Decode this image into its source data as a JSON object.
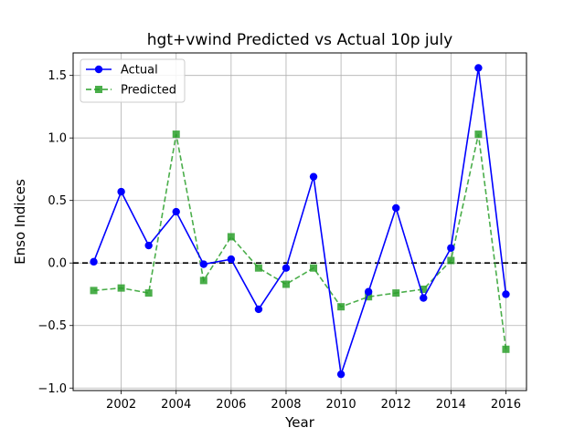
{
  "chart_data": {
    "type": "line",
    "title": "hgt+vwind Predicted vs Actual 10p july",
    "xlabel": "Year",
    "ylabel": "Enso Indices",
    "x": [
      2001,
      2002,
      2003,
      2004,
      2005,
      2006,
      2007,
      2008,
      2009,
      2010,
      2011,
      2012,
      2013,
      2014,
      2015,
      2016
    ],
    "xlim": [
      2000.25,
      2016.75
    ],
    "ylim": [
      -1.02,
      1.68
    ],
    "xticks": [
      2002,
      2004,
      2006,
      2008,
      2010,
      2012,
      2014,
      2016
    ],
    "xtick_labels": [
      "2002",
      "2004",
      "2006",
      "2008",
      "2010",
      "2012",
      "2014",
      "2016"
    ],
    "yticks": [
      -1.0,
      -0.5,
      0.0,
      0.5,
      1.0,
      1.5
    ],
    "ytick_labels": [
      "−1.0",
      "−0.5",
      "0.0",
      "0.5",
      "1.0",
      "1.5"
    ],
    "grid": true,
    "legend_position": "upper-left",
    "reference_line": {
      "y": 0,
      "style": "dashed",
      "color": "#000000"
    },
    "series": [
      {
        "name": "Actual",
        "color": "#0000ff",
        "marker": "circle",
        "linestyle": "solid",
        "values": [
          0.01,
          0.57,
          0.14,
          0.41,
          -0.01,
          0.03,
          -0.37,
          -0.04,
          0.69,
          -0.89,
          -0.23,
          0.44,
          -0.28,
          0.12,
          1.56,
          -0.25
        ]
      },
      {
        "name": "Predicted",
        "color": "#2ca02c",
        "marker": "square",
        "linestyle": "dashed",
        "values": [
          -0.22,
          -0.2,
          -0.24,
          1.03,
          -0.14,
          0.21,
          -0.04,
          -0.17,
          -0.04,
          -0.35,
          -0.27,
          -0.24,
          -0.21,
          0.02,
          1.03,
          -0.69
        ]
      }
    ]
  }
}
